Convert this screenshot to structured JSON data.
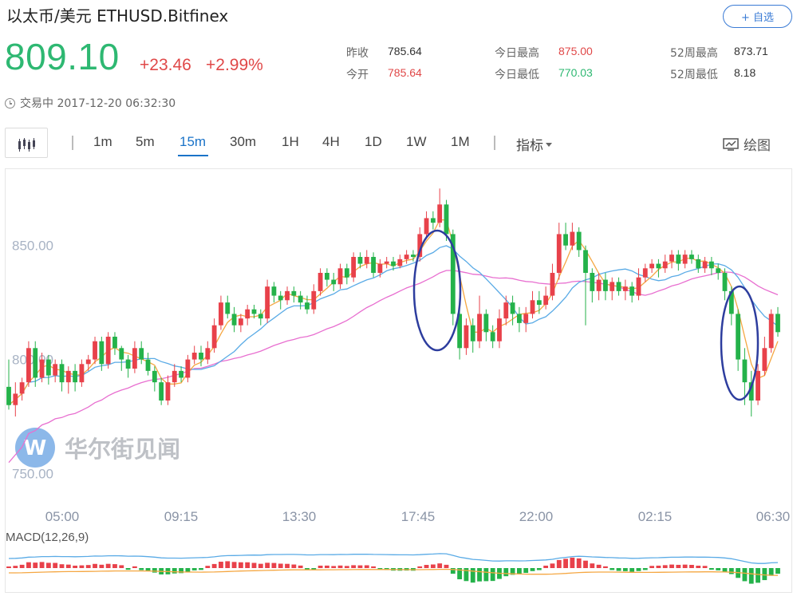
{
  "header": {
    "title": "以太币/美元  ETHUSD.Bitfinex",
    "watch_label": "+ 自选"
  },
  "quote": {
    "price": "809.10",
    "change": "+23.46",
    "change_pct": "+2.99%",
    "status": "交易中 2017-12-20 06:32:30"
  },
  "stats": {
    "prev_close_label": "昨收",
    "prev_close": "785.64",
    "open_label": "今开",
    "open": "785.64",
    "day_high_label": "今日最高",
    "day_high": "875.00",
    "day_low_label": "今日最低",
    "day_low": "770.03",
    "wk52_high_label": "52周最高",
    "wk52_high": "873.71",
    "wk52_low_label": "52周最低",
    "wk52_low": "8.18"
  },
  "toolbar": {
    "timeframes": [
      "1m",
      "5m",
      "15m",
      "30m",
      "1H",
      "4H",
      "1D",
      "1W",
      "1M"
    ],
    "active": "15m",
    "indicators_label": "指标",
    "draw_label": "绘图"
  },
  "watermark": "华尔街见闻",
  "colors": {
    "up": "#e8414a",
    "down": "#24b24a",
    "ma_orange": "#f5a742",
    "ma_blue": "#5aabe6",
    "ma_pink": "#e86fd0",
    "circle": "#2d3d9e"
  },
  "chart_data": {
    "type": "candlestick",
    "title": "ETHUSD.Bitfinex 15m",
    "y_ticks": [
      "850.00",
      "800.00",
      "750.00"
    ],
    "x_ticks": [
      "05:00",
      "09:15",
      "13:30",
      "17:45",
      "22:00",
      "02:15",
      "06:30"
    ],
    "indicator_label": "MACD(12,26,9)",
    "ohlc_approx": [
      [
        788,
        780,
        800,
        778
      ],
      [
        780,
        785,
        790,
        775
      ],
      [
        785,
        790,
        792,
        782
      ],
      [
        790,
        805,
        808,
        788
      ],
      [
        805,
        792,
        808,
        788
      ],
      [
        792,
        800,
        803,
        790
      ],
      [
        800,
        793,
        802,
        789
      ],
      [
        793,
        798,
        800,
        790
      ],
      [
        798,
        790,
        800,
        786
      ],
      [
        790,
        795,
        797,
        785
      ],
      [
        795,
        790,
        798,
        786
      ],
      [
        790,
        798,
        800,
        788
      ],
      [
        798,
        800,
        802,
        795
      ],
      [
        800,
        808,
        810,
        798
      ],
      [
        808,
        798,
        810,
        795
      ],
      [
        798,
        810,
        812,
        796
      ],
      [
        810,
        805,
        812,
        802
      ],
      [
        805,
        800,
        806,
        795
      ],
      [
        800,
        796,
        802,
        792
      ],
      [
        796,
        805,
        808,
        794
      ],
      [
        805,
        800,
        808,
        798
      ],
      [
        800,
        795,
        803,
        793
      ],
      [
        795,
        790,
        797,
        786
      ],
      [
        790,
        782,
        792,
        780
      ],
      [
        782,
        790,
        793,
        780
      ],
      [
        790,
        795,
        798,
        788
      ],
      [
        795,
        792,
        797,
        790
      ],
      [
        792,
        800,
        802,
        790
      ],
      [
        800,
        803,
        806,
        798
      ],
      [
        803,
        800,
        806,
        797
      ],
      [
        800,
        805,
        808,
        798
      ],
      [
        805,
        815,
        818,
        803
      ],
      [
        815,
        825,
        828,
        813
      ],
      [
        825,
        820,
        828,
        818
      ],
      [
        820,
        815,
        823,
        812
      ],
      [
        815,
        818,
        820,
        812
      ],
      [
        818,
        822,
        824,
        815
      ],
      [
        822,
        820,
        824,
        818
      ],
      [
        820,
        818,
        822,
        815
      ],
      [
        818,
        832,
        835,
        816
      ],
      [
        832,
        828,
        834,
        825
      ],
      [
        828,
        826,
        830,
        822
      ],
      [
        826,
        830,
        832,
        824
      ],
      [
        830,
        828,
        832,
        825
      ],
      [
        828,
        825,
        830,
        822
      ],
      [
        825,
        822,
        828,
        820
      ],
      [
        822,
        830,
        833,
        820
      ],
      [
        830,
        838,
        840,
        828
      ],
      [
        838,
        835,
        840,
        832
      ],
      [
        835,
        833,
        838,
        830
      ],
      [
        833,
        840,
        842,
        831
      ],
      [
        840,
        836,
        842,
        833
      ],
      [
        836,
        845,
        847,
        834
      ],
      [
        845,
        842,
        847,
        840
      ],
      [
        842,
        845,
        848,
        840
      ],
      [
        845,
        838,
        847,
        836
      ],
      [
        838,
        842,
        844,
        836
      ],
      [
        842,
        843,
        845,
        840
      ],
      [
        843,
        841,
        845,
        839
      ],
      [
        841,
        844,
        846,
        840
      ],
      [
        844,
        846,
        848,
        842
      ],
      [
        846,
        845,
        848,
        843
      ],
      [
        845,
        855,
        858,
        843
      ],
      [
        855,
        862,
        865,
        853
      ],
      [
        862,
        860,
        865,
        857
      ],
      [
        860,
        868,
        875,
        858
      ],
      [
        868,
        855,
        870,
        852
      ],
      [
        855,
        820,
        857,
        815
      ],
      [
        820,
        805,
        825,
        800
      ],
      [
        805,
        815,
        818,
        802
      ],
      [
        815,
        808,
        818,
        803
      ],
      [
        808,
        820,
        828,
        805
      ],
      [
        820,
        812,
        822,
        808
      ],
      [
        812,
        808,
        815,
        805
      ],
      [
        808,
        818,
        822,
        805
      ],
      [
        818,
        825,
        828,
        815
      ],
      [
        825,
        820,
        828,
        815
      ],
      [
        820,
        816,
        823,
        812
      ],
      [
        816,
        820,
        823,
        812
      ],
      [
        820,
        826,
        830,
        818
      ],
      [
        826,
        824,
        830,
        820
      ],
      [
        824,
        828,
        832,
        822
      ],
      [
        828,
        838,
        842,
        826
      ],
      [
        838,
        855,
        860,
        835
      ],
      [
        855,
        850,
        860,
        848
      ],
      [
        850,
        856,
        860,
        848
      ],
      [
        856,
        848,
        858,
        845
      ],
      [
        848,
        838,
        850,
        815
      ],
      [
        838,
        830,
        840,
        825
      ],
      [
        830,
        835,
        838,
        826
      ],
      [
        835,
        830,
        838,
        826
      ],
      [
        830,
        834,
        836,
        826
      ],
      [
        834,
        830,
        836,
        828
      ],
      [
        830,
        832,
        835,
        826
      ],
      [
        832,
        828,
        834,
        825
      ],
      [
        828,
        836,
        840,
        826
      ],
      [
        836,
        840,
        842,
        834
      ],
      [
        840,
        842,
        844,
        838
      ],
      [
        842,
        840,
        844,
        836
      ],
      [
        840,
        843,
        846,
        838
      ],
      [
        843,
        846,
        848,
        840
      ],
      [
        846,
        842,
        848,
        839
      ],
      [
        842,
        846,
        848,
        840
      ],
      [
        846,
        844,
        848,
        842
      ],
      [
        844,
        840,
        846,
        838
      ],
      [
        840,
        843,
        845,
        838
      ],
      [
        843,
        840,
        845,
        837
      ],
      [
        840,
        838,
        842,
        835
      ],
      [
        838,
        830,
        840,
        826
      ],
      [
        830,
        820,
        832,
        815
      ],
      [
        820,
        800,
        822,
        795
      ],
      [
        800,
        790,
        805,
        780
      ],
      [
        790,
        782,
        795,
        775
      ],
      [
        782,
        795,
        798,
        780
      ],
      [
        795,
        805,
        810,
        793
      ],
      [
        805,
        820,
        822,
        803
      ],
      [
        820,
        812,
        823,
        810
      ]
    ]
  }
}
